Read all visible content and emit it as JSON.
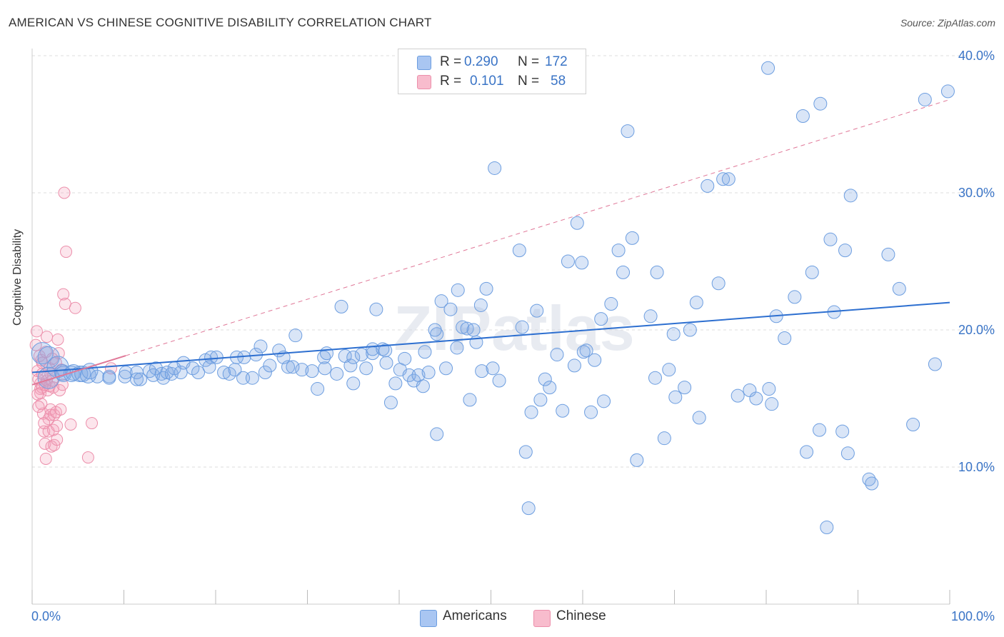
{
  "title": "AMERICAN VS CHINESE COGNITIVE DISABILITY CORRELATION CHART",
  "source": "Source: ZipAtlas.com",
  "watermark": "ZIPatlas",
  "legend": {
    "rows": [
      {
        "r_label": "R =",
        "r_value": "0.290",
        "n_label": "N =",
        "n_value": "172",
        "color": "#a9c6f2",
        "border": "#6d9ee0"
      },
      {
        "r_label": "R =",
        "r_value": "0.101",
        "n_label": "N =",
        "n_value": "58",
        "color": "#f8bccd",
        "border": "#ec8fab"
      }
    ]
  },
  "bottom_legend": [
    "Americans",
    "Chinese"
  ],
  "colors": {
    "american": "#6d9ee0",
    "american_fill": "rgba(130,170,230,0.30)",
    "american_line": "#2d6fd0",
    "chinese": "#ec8fab",
    "chinese_fill": "rgba(244,160,185,0.28)",
    "chinese_line": "#e07898",
    "tick_label": "#3a74c6"
  },
  "chart_data": {
    "type": "scatter",
    "title": "AMERICAN VS CHINESE COGNITIVE DISABILITY CORRELATION CHART",
    "xlabel": "",
    "ylabel": "Cognitive Disability",
    "xlim": [
      0,
      100
    ],
    "ylim": [
      0,
      41
    ],
    "x_tick_labels": [
      "0.0%",
      "100.0%"
    ],
    "y_ticks": [
      10,
      20,
      30,
      40
    ],
    "y_tick_labels": [
      "10.0%",
      "20.0%",
      "30.0%",
      "40.0%"
    ],
    "grid": true,
    "legend_position": "top-center",
    "series": [
      {
        "name": "Americans",
        "r": 0.29,
        "n": 172,
        "trend": {
          "x": [
            0,
            100
          ],
          "y": [
            16.9,
            22.0
          ],
          "style": "solid"
        },
        "points": [
          [
            1.1,
            18.3
          ],
          [
            1.8,
            18.0
          ],
          [
            1.8,
            16.5
          ],
          [
            2.8,
            17.3
          ],
          [
            3.3,
            16.9
          ],
          [
            3.4,
            16.8
          ],
          [
            4.3,
            16.8
          ],
          [
            4.5,
            16.9
          ],
          [
            5.2,
            16.8
          ],
          [
            5.5,
            16.8
          ],
          [
            6.1,
            16.7
          ],
          [
            6.3,
            17.0
          ],
          [
            7.1,
            16.6
          ],
          [
            8.4,
            16.6
          ],
          [
            8.4,
            16.5
          ],
          [
            10.1,
            16.6
          ],
          [
            10.2,
            16.9
          ],
          [
            11.4,
            16.9
          ],
          [
            11.4,
            16.4
          ],
          [
            11.8,
            16.4
          ],
          [
            12.8,
            17.0
          ],
          [
            13.5,
            17.2
          ],
          [
            13.2,
            16.7
          ],
          [
            14.1,
            16.8
          ],
          [
            14.3,
            16.5
          ],
          [
            14.7,
            16.9
          ],
          [
            15.2,
            16.8
          ],
          [
            15.5,
            17.2
          ],
          [
            16.2,
            16.9
          ],
          [
            16.5,
            17.6
          ],
          [
            17.5,
            17.2
          ],
          [
            18.1,
            16.9
          ],
          [
            18.9,
            17.8
          ],
          [
            19.5,
            18.0
          ],
          [
            19.3,
            17.3
          ],
          [
            20.1,
            18.0
          ],
          [
            20.9,
            16.9
          ],
          [
            21.5,
            16.8
          ],
          [
            22.1,
            17.1
          ],
          [
            22.3,
            18.0
          ],
          [
            23.1,
            18.0
          ],
          [
            23.0,
            16.5
          ],
          [
            24.0,
            16.5
          ],
          [
            24.4,
            18.2
          ],
          [
            24.9,
            18.8
          ],
          [
            25.4,
            16.9
          ],
          [
            25.9,
            17.4
          ],
          [
            26.9,
            18.5
          ],
          [
            27.4,
            18.0
          ],
          [
            27.9,
            17.3
          ],
          [
            28.4,
            17.3
          ],
          [
            28.7,
            19.6
          ],
          [
            29.4,
            17.1
          ],
          [
            30.5,
            17.0
          ],
          [
            31.8,
            18.0
          ],
          [
            31.1,
            15.7
          ],
          [
            32.1,
            18.3
          ],
          [
            31.9,
            17.2
          ],
          [
            33.2,
            16.8
          ],
          [
            33.7,
            21.7
          ],
          [
            34.1,
            18.1
          ],
          [
            34.7,
            17.4
          ],
          [
            35.0,
            18.0
          ],
          [
            35.0,
            16.1
          ],
          [
            35.9,
            18.2
          ],
          [
            36.4,
            17.2
          ],
          [
            37.1,
            18.3
          ],
          [
            37.1,
            18.6
          ],
          [
            37.5,
            21.5
          ],
          [
            38.2,
            18.6
          ],
          [
            38.5,
            18.5
          ],
          [
            38.6,
            17.6
          ],
          [
            39.1,
            14.7
          ],
          [
            39.6,
            16.1
          ],
          [
            40.1,
            17.1
          ],
          [
            40.6,
            17.9
          ],
          [
            41.1,
            16.7
          ],
          [
            41.6,
            16.3
          ],
          [
            42.1,
            16.7
          ],
          [
            42.6,
            15.9
          ],
          [
            42.8,
            18.4
          ],
          [
            43.2,
            16.9
          ],
          [
            44.1,
            12.4
          ],
          [
            44.1,
            19.7
          ],
          [
            44.6,
            22.1
          ],
          [
            45.1,
            17.2
          ],
          [
            45.6,
            21.5
          ],
          [
            46.4,
            22.9
          ],
          [
            46.9,
            20.2
          ],
          [
            47.4,
            20.1
          ],
          [
            47.7,
            14.9
          ],
          [
            48.4,
            19.1
          ],
          [
            48.1,
            20.0
          ],
          [
            49.0,
            17.0
          ],
          [
            49.5,
            23.0
          ],
          [
            50.2,
            17.2
          ],
          [
            50.4,
            31.8
          ],
          [
            50.9,
            16.3
          ],
          [
            53.1,
            25.8
          ],
          [
            53.8,
            11.1
          ],
          [
            54.1,
            7.0
          ],
          [
            54.4,
            14.0
          ],
          [
            55.0,
            21.4
          ],
          [
            55.4,
            14.9
          ],
          [
            55.9,
            16.4
          ],
          [
            56.4,
            15.8
          ],
          [
            57.2,
            18.2
          ],
          [
            57.8,
            14.1
          ],
          [
            58.4,
            25.0
          ],
          [
            59.1,
            17.4
          ],
          [
            59.4,
            27.8
          ],
          [
            59.9,
            24.9
          ],
          [
            60.4,
            18.5
          ],
          [
            60.9,
            14.0
          ],
          [
            61.3,
            17.8
          ],
          [
            62.0,
            20.8
          ],
          [
            62.3,
            14.8
          ],
          [
            63.1,
            21.9
          ],
          [
            63.9,
            25.8
          ],
          [
            64.4,
            24.2
          ],
          [
            64.9,
            34.5
          ],
          [
            65.4,
            26.7
          ],
          [
            65.9,
            10.5
          ],
          [
            67.4,
            21.0
          ],
          [
            67.9,
            16.5
          ],
          [
            68.1,
            24.2
          ],
          [
            68.9,
            12.1
          ],
          [
            69.4,
            17.1
          ],
          [
            69.9,
            19.7
          ],
          [
            70.1,
            15.1
          ],
          [
            71.1,
            15.8
          ],
          [
            71.7,
            20.0
          ],
          [
            72.4,
            22.0
          ],
          [
            72.7,
            13.6
          ],
          [
            73.6,
            30.5
          ],
          [
            74.8,
            23.4
          ],
          [
            75.3,
            31.0
          ],
          [
            75.9,
            31.0
          ],
          [
            76.9,
            15.2
          ],
          [
            78.2,
            15.6
          ],
          [
            78.9,
            15.0
          ],
          [
            80.3,
            15.7
          ],
          [
            80.6,
            14.6
          ],
          [
            81.1,
            21.0
          ],
          [
            82.0,
            19.4
          ],
          [
            83.1,
            22.4
          ],
          [
            84.0,
            35.6
          ],
          [
            84.4,
            11.1
          ],
          [
            85.0,
            24.2
          ],
          [
            85.8,
            12.7
          ],
          [
            85.9,
            36.5
          ],
          [
            86.6,
            5.6
          ],
          [
            87.0,
            26.6
          ],
          [
            87.4,
            21.3
          ],
          [
            88.3,
            12.6
          ],
          [
            88.6,
            25.8
          ],
          [
            88.9,
            11.0
          ],
          [
            89.2,
            29.8
          ],
          [
            91.2,
            9.1
          ],
          [
            91.5,
            8.8
          ],
          [
            93.3,
            25.5
          ],
          [
            94.5,
            23.0
          ],
          [
            96.0,
            13.1
          ],
          [
            97.3,
            36.8
          ],
          [
            98.4,
            17.5
          ],
          [
            99.8,
            37.4
          ],
          [
            80.2,
            39.1
          ],
          [
            60.1,
            18.4
          ],
          [
            53.4,
            20.2
          ],
          [
            48.9,
            21.8
          ],
          [
            46.3,
            18.7
          ],
          [
            43.9,
            20.0
          ]
        ]
      },
      {
        "name": "Chinese",
        "r": 0.101,
        "n": 58,
        "trend": {
          "x": [
            0,
            100
          ],
          "y": [
            16.0,
            36.8
          ],
          "style": "dashed",
          "solid_until_x": 10.2
        },
        "points": [
          [
            0.4,
            18.9
          ],
          [
            0.5,
            19.9
          ],
          [
            0.6,
            17.0
          ],
          [
            0.7,
            16.4
          ],
          [
            0.9,
            16.1
          ],
          [
            0.9,
            15.7
          ],
          [
            0.9,
            15.4
          ],
          [
            1.0,
            17.8
          ],
          [
            1.1,
            16.8
          ],
          [
            1.1,
            15.8
          ],
          [
            1.2,
            13.9
          ],
          [
            1.3,
            12.6
          ],
          [
            1.4,
            11.7
          ],
          [
            1.5,
            10.6
          ],
          [
            1.6,
            16.3
          ],
          [
            1.7,
            15.6
          ],
          [
            1.8,
            13.5
          ],
          [
            1.8,
            12.6
          ],
          [
            1.9,
            17.2
          ],
          [
            1.9,
            15.9
          ],
          [
            2.0,
            16.8
          ],
          [
            2.0,
            14.2
          ],
          [
            2.0,
            13.8
          ],
          [
            2.1,
            11.5
          ],
          [
            2.2,
            16.3
          ],
          [
            2.3,
            12.7
          ],
          [
            2.3,
            15.8
          ],
          [
            2.4,
            13.8
          ],
          [
            2.4,
            11.6
          ],
          [
            2.6,
            14.0
          ],
          [
            2.6,
            17.6
          ],
          [
            2.7,
            12.0
          ],
          [
            2.7,
            13.0
          ],
          [
            2.8,
            19.3
          ],
          [
            2.9,
            18.3
          ],
          [
            3.0,
            15.6
          ],
          [
            3.1,
            14.2
          ],
          [
            3.2,
            17.1
          ],
          [
            3.3,
            16.0
          ],
          [
            3.4,
            22.6
          ],
          [
            3.5,
            30.0
          ],
          [
            3.6,
            21.9
          ],
          [
            3.7,
            25.7
          ],
          [
            4.2,
            13.1
          ],
          [
            4.7,
            21.6
          ],
          [
            6.1,
            10.7
          ],
          [
            6.5,
            13.2
          ],
          [
            8.6,
            17.2
          ],
          [
            0.8,
            18.1
          ],
          [
            1.0,
            14.6
          ],
          [
            1.1,
            17.6
          ],
          [
            1.4,
            16.0
          ],
          [
            1.6,
            19.5
          ],
          [
            0.6,
            15.3
          ],
          [
            0.7,
            14.4
          ],
          [
            1.3,
            13.2
          ],
          [
            1.5,
            18.4
          ],
          [
            2.2,
            17.9
          ]
        ]
      }
    ]
  }
}
